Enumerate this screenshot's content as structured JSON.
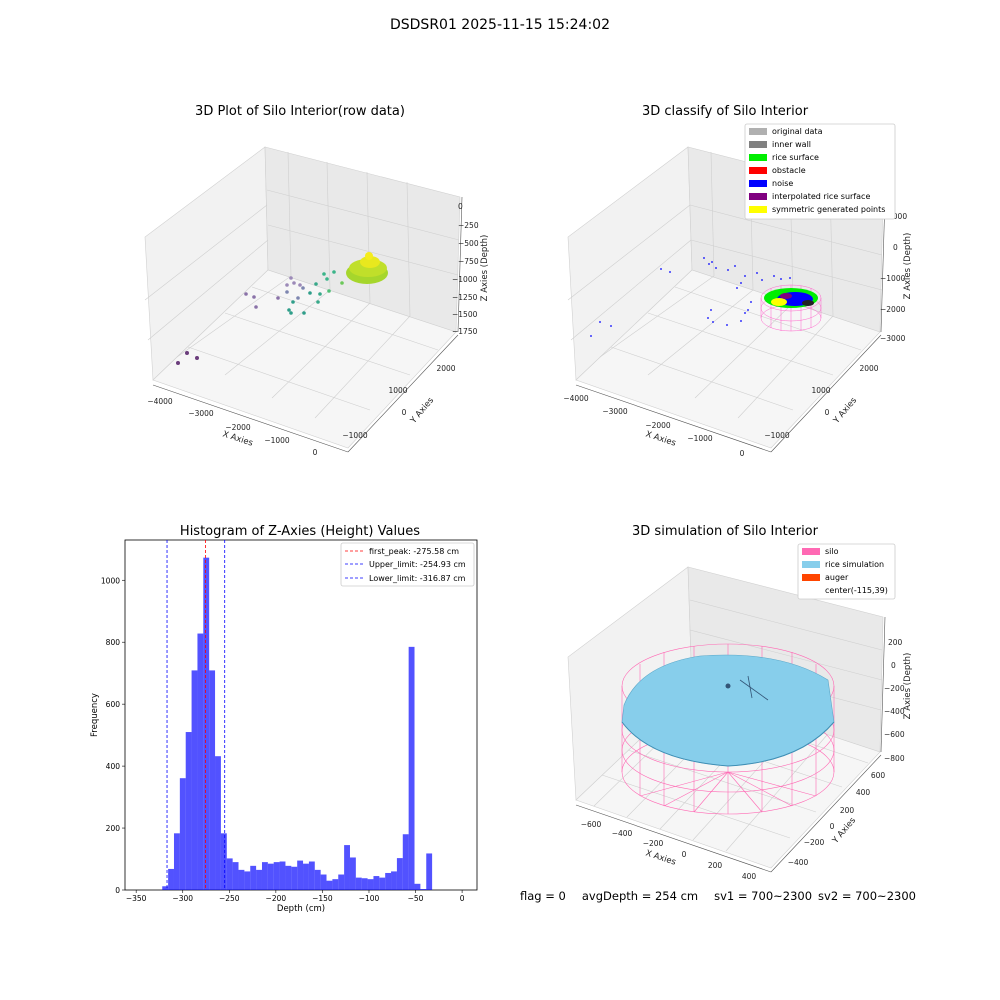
{
  "suptitle": "DSDSR01 2025-11-15 15:24:02",
  "panels": {
    "raw": {
      "title": "3D Plot of Silo Interior(row data)",
      "xlabel": "X Axies",
      "ylabel": "Y Axies",
      "zlabel": "Z Axies (Depth)",
      "xticks": [
        "−4000",
        "−3000",
        "−2000",
        "−1000",
        "0"
      ],
      "yticks": [
        "−1000",
        "0",
        "1000",
        "2000"
      ],
      "zticks": [
        "0",
        "−250",
        "−500",
        "−750",
        "−1000",
        "−1250",
        "−1500",
        "−1750"
      ]
    },
    "classify": {
      "title": "3D classify of Silo Interior",
      "xlabel": "X Axies",
      "ylabel": "Y Axies",
      "zlabel": "Z Axies (Depth)",
      "xticks": [
        "−4000",
        "−3000",
        "−2000",
        "−1000",
        "0"
      ],
      "yticks": [
        "−1000",
        "0",
        "1000",
        "2000"
      ],
      "zticks": [
        "1000",
        "0",
        "−1000",
        "−2000",
        "−3000"
      ],
      "legend": [
        {
          "label": "original data",
          "color": "#b0b0b0"
        },
        {
          "label": "inner wall",
          "color": "#808080"
        },
        {
          "label": "rice surface",
          "color": "#00ee00"
        },
        {
          "label": "obstacle",
          "color": "#ff0000"
        },
        {
          "label": "noise",
          "color": "#0000ff"
        },
        {
          "label": "interpolated rice surface",
          "color": "#800080"
        },
        {
          "label": "symmetric generated points",
          "color": "#ffff00"
        }
      ]
    },
    "simulation": {
      "title": "3D simulation of Silo Interior",
      "xlabel": "X Axies",
      "ylabel": "Y Axies",
      "zlabel": "Z Axies (Depth)",
      "xticks": [
        "−600",
        "−400",
        "−200",
        "0",
        "200",
        "400"
      ],
      "yticks": [
        "−400",
        "−200",
        "0",
        "200",
        "400",
        "600"
      ],
      "zticks": [
        "200",
        "0",
        "−200",
        "−400",
        "−600",
        "−800"
      ],
      "legend": [
        {
          "label": "silo",
          "color": "#ff69b4"
        },
        {
          "label": "rice simulation",
          "color": "#87ceeb"
        },
        {
          "label": "auger",
          "color": "#ff4500"
        },
        {
          "label": "center(-115,39)",
          "color": ""
        }
      ]
    }
  },
  "chart_data": {
    "type": "bar",
    "title": "Histogram of Z-Axies (Height) Values",
    "xlabel": "Depth (cm)",
    "ylabel": "Frequency",
    "xlim": [
      -362,
      16
    ],
    "ylim": [
      0,
      1130
    ],
    "xticks": [
      -350,
      -300,
      -250,
      -200,
      -150,
      -100,
      -50,
      0
    ],
    "yticks": [
      0,
      200,
      400,
      600,
      800,
      1000
    ],
    "bin_width": 6.3,
    "bin_start": -322,
    "values": [
      12,
      68,
      183,
      361,
      510,
      709,
      828,
      1073,
      709,
      432,
      183,
      102,
      90,
      65,
      60,
      78,
      65,
      90,
      85,
      90,
      92,
      78,
      75,
      95,
      85,
      92,
      65,
      50,
      30,
      35,
      50,
      145,
      105,
      40,
      38,
      35,
      45,
      40,
      55,
      60,
      103,
      180,
      785,
      20,
      3,
      118
    ],
    "color": "#0000ff",
    "lines": [
      {
        "label": "first_peak: -275.58 cm",
        "value": -275.58,
        "color": "#ff0000"
      },
      {
        "label": "Upper_limit: -254.93 cm",
        "value": -254.93,
        "color": "#0000ff"
      },
      {
        "label": "Lower_limit: -316.87 cm",
        "value": -316.87,
        "color": "#0000ff"
      }
    ]
  },
  "footer": {
    "flag": "flag = 0",
    "avg": "avgDepth = 254 cm",
    "sv1": "sv1 = 700~2300",
    "sv2": "sv2 = 700~2300"
  }
}
